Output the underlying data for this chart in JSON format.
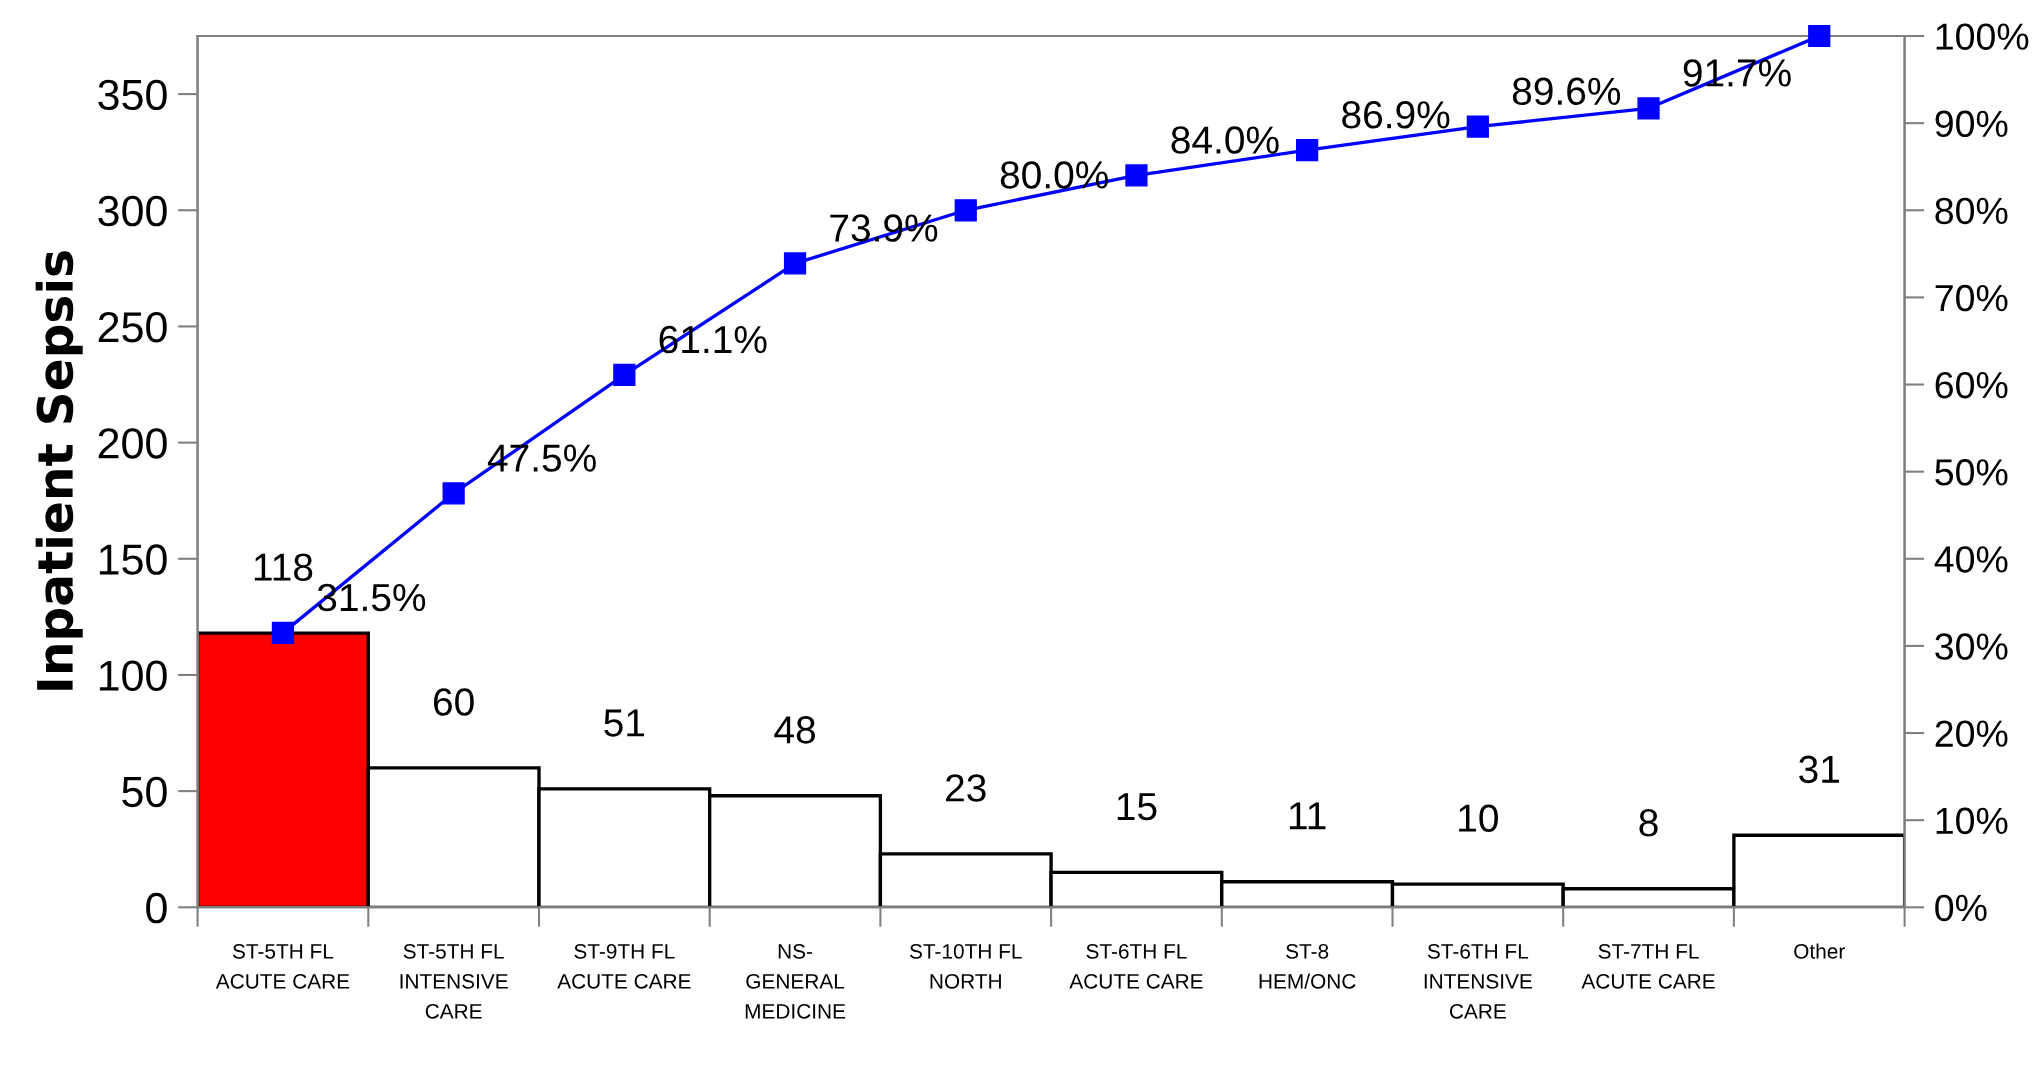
{
  "chart_data": {
    "type": "bar",
    "ylabel": "Inpatient Sepsis",
    "categories": [
      "ST-5TH FL\nACUTE CARE",
      "ST-5TH FL\nINTENSIVE\nCARE",
      "ST-9TH FL\nACUTE CARE",
      "NS-\nGENERAL\nMEDICINE",
      "ST-10TH FL\nNORTH",
      "ST-6TH FL\nACUTE CARE",
      "ST-8\nHEM/ONC",
      "ST-6TH FL\nINTENSIVE\nCARE",
      "ST-7TH FL\nACUTE CARE",
      "Other"
    ],
    "series": [
      {
        "colors": [
          "#ff0000",
          "#ffffff",
          "#ffffff",
          "#ffffff",
          "#ffffff",
          "#ffffff",
          "#ffffff",
          "#ffffff",
          "#ffffff",
          "#ffffff"
        ],
        "values": [
          118,
          60,
          51,
          48,
          23,
          15,
          11,
          10,
          8,
          31
        ],
        "value_labels": [
          "118",
          "60",
          "51",
          "48",
          "23",
          "15",
          "11",
          "10",
          "8",
          "31"
        ]
      },
      {
        "type": "line",
        "axis": "y2",
        "color": "#0000ff",
        "values": [
          31.5,
          47.5,
          61.1,
          73.9,
          80.0,
          84.0,
          86.9,
          89.6,
          91.7,
          100
        ],
        "value_labels": [
          "31.5%",
          "47.5%",
          "61.1%",
          "73.9%",
          "80.0%",
          "84.0%",
          "86.9%",
          "89.6%",
          "91.7%",
          null
        ]
      }
    ],
    "ylim": [
      0,
      375
    ],
    "yticks": [
      0,
      50,
      100,
      150,
      200,
      250,
      300,
      350
    ],
    "y2lim": [
      0,
      100
    ],
    "y2ticks": [
      {
        "value": 0,
        "label": "0%"
      },
      {
        "value": 10,
        "label": "10%"
      },
      {
        "value": 20,
        "label": "20%"
      },
      {
        "value": 30,
        "label": "30%"
      },
      {
        "value": 40,
        "label": "40%"
      },
      {
        "value": 50,
        "label": "50%"
      },
      {
        "value": 60,
        "label": "60%"
      },
      {
        "value": 70,
        "label": "70%"
      },
      {
        "value": 80,
        "label": "80%"
      },
      {
        "value": 90,
        "label": "90%"
      },
      {
        "value": 100,
        "label": "100%"
      }
    ],
    "marker": "square",
    "line_style": "solid"
  }
}
